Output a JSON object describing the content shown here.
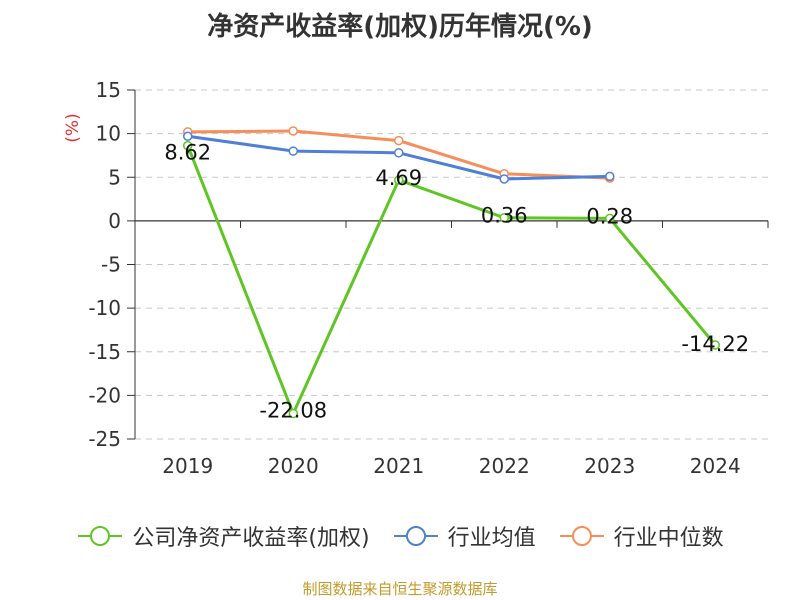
{
  "chart_data": {
    "type": "line",
    "title": "净资产收益率(加权)历年情况(%)",
    "ylabel": "(%)",
    "ylim": [
      -25,
      15
    ],
    "yticks": [
      15,
      10,
      5,
      0,
      -5,
      -10,
      -15,
      -20,
      -25
    ],
    "categories": [
      "2019",
      "2020",
      "2021",
      "2022",
      "2023",
      "2024"
    ],
    "series": [
      {
        "name": "公司净资产收益率(加权)",
        "color": "#5ec522",
        "values": [
          8.62,
          -22.08,
          4.69,
          0.36,
          0.28,
          -14.22
        ],
        "labels": [
          "8.62",
          "-22.08",
          "4.69",
          "0.36",
          "0.28",
          "-14.22"
        ]
      },
      {
        "name": "行业均值",
        "color": "#4f7fd6",
        "values": [
          9.7,
          8.0,
          7.8,
          4.8,
          5.1,
          null
        ]
      },
      {
        "name": "行业中位数",
        "color": "#f58e5a",
        "values": [
          10.2,
          10.3,
          9.2,
          5.4,
          4.9,
          null
        ]
      }
    ],
    "grid": "horizontal-dashed",
    "legend": "bottom"
  },
  "source": "制图数据来自恒生聚源数据库"
}
